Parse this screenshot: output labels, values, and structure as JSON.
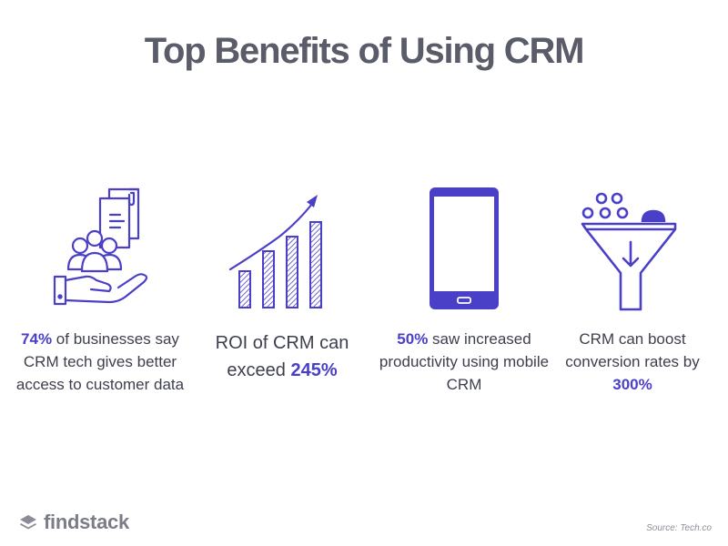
{
  "title": "Top Benefits of Using CRM",
  "accent_color": "#4a3fc7",
  "benefits": [
    {
      "icon": "hand-people-documents-icon",
      "highlight": "74%",
      "text": " of businesses say CRM tech gives better access to customer data"
    },
    {
      "icon": "growth-chart-icon",
      "text": "ROI of CRM can exceed ",
      "highlight": "245%"
    },
    {
      "icon": "smartphone-icon",
      "highlight": "50%",
      "text": " saw increased productivity using mobile CRM"
    },
    {
      "icon": "funnel-icon",
      "text": "CRM can boost conversion rates by ",
      "highlight": "300%"
    }
  ],
  "brand": "findstack",
  "source": "Source: Tech.co"
}
